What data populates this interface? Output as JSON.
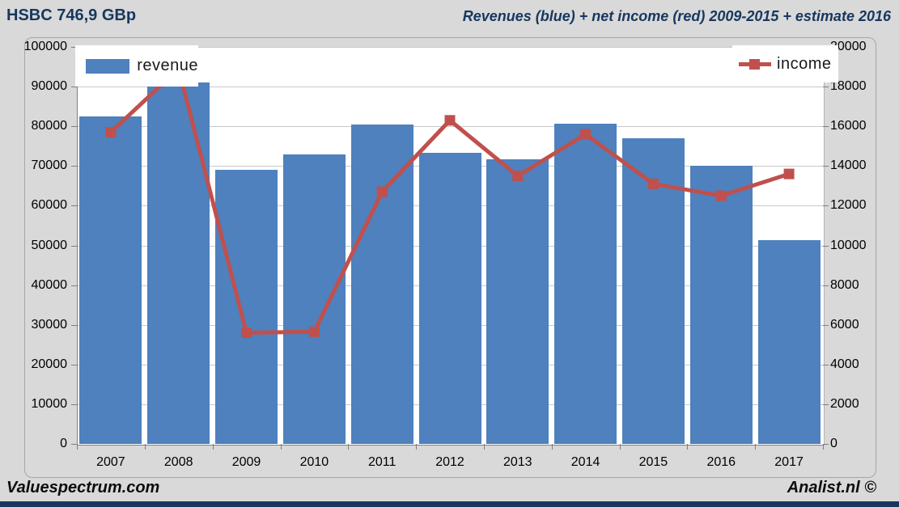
{
  "header": {
    "title": "HSBC 746,9 GBp",
    "subtitle": "Revenues (blue) + net income (red) 2009-2015 + estimate 2016"
  },
  "legend": {
    "revenue_label": "revenue",
    "income_label": "income"
  },
  "footer": {
    "left": "Valuespectrum.com",
    "right": "Analist.nl ©"
  },
  "colors": {
    "bar": "#4e81bd",
    "line": "#c0504d",
    "title_text": "#17375e",
    "background": "#d9d9d9",
    "plot_background": "#ffffff",
    "gridline": "#c9c9c9",
    "axis_line": "#7f7f7f",
    "footer_strip": "#17375e"
  },
  "chart_data": {
    "type": "bar",
    "subtype": "bar+line combo, dual axis",
    "title": "Revenues (blue) + net income (red) 2009-2015 + estimate 2016",
    "categories": [
      "2007",
      "2008",
      "2009",
      "2010",
      "2011",
      "2012",
      "2013",
      "2014",
      "2015",
      "2016",
      "2017"
    ],
    "series": [
      {
        "name": "revenue",
        "type": "bar",
        "axis": "left",
        "color": "#4e81bd",
        "values": [
          82500,
          91000,
          69000,
          73000,
          80500,
          73400,
          71800,
          80700,
          77000,
          70000,
          51300
        ]
      },
      {
        "name": "income",
        "type": "line",
        "axis": "right",
        "color": "#c0504d",
        "marker": "square",
        "values": [
          15700,
          18900,
          5600,
          5650,
          12700,
          16300,
          13500,
          15600,
          13100,
          12500,
          13600
        ]
      }
    ],
    "left_axis": {
      "min": 0,
      "max": 100000,
      "step": 10000
    },
    "right_axis": {
      "min": 0,
      "max": 20000,
      "step": 2000
    },
    "grid": true,
    "legend_position": "inside plot, top-left (revenue) and top-right (income)"
  }
}
